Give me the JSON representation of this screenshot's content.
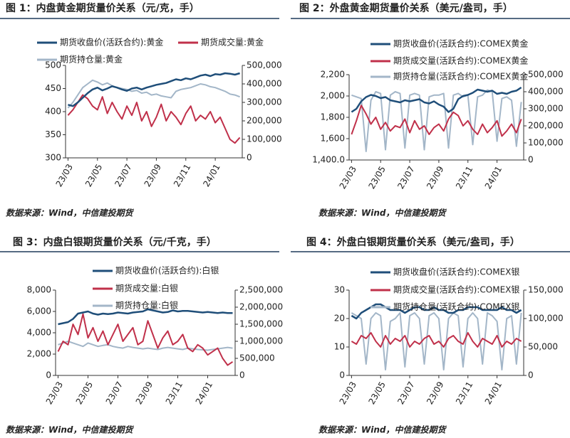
{
  "chart_data": [
    {
      "type": "line",
      "title": "图 1：内盘黄金期货量价关系（元/克，手）",
      "source": "数据来源：Wind，中信建投期货",
      "categories": [
        "23/03",
        null,
        null,
        null,
        null,
        null,
        "23/05",
        null,
        null,
        null,
        null,
        null,
        "23/07",
        null,
        null,
        null,
        null,
        null,
        "23/09",
        null,
        null,
        null,
        null,
        null,
        "23/11",
        null,
        null,
        null,
        null,
        null,
        "24/01",
        null,
        null,
        null,
        null,
        null
      ],
      "ylim": [
        300,
        500
      ],
      "yticks": [
        300,
        350,
        400,
        450,
        500
      ],
      "y2lim": [
        0,
        500000
      ],
      "y2ticks": [
        0,
        {
          "value": 100000,
          "label": "100,000"
        },
        {
          "value": 200000,
          "label": "200,000"
        },
        {
          "value": 300000,
          "label": "300,000"
        },
        {
          "value": 400000,
          "label": "400,000"
        },
        {
          "value": 500000,
          "label": "500,000"
        }
      ],
      "series": [
        {
          "name": "期货收盘价(活跃合约):黄金",
          "color": "#1f4e79",
          "values": [
            415,
            412,
            420,
            430,
            440,
            448,
            452,
            446,
            450,
            455,
            452,
            448,
            445,
            450,
            452,
            448,
            452,
            455,
            458,
            460,
            462,
            466,
            470,
            468,
            472,
            470,
            474,
            478,
            480,
            477,
            481,
            480,
            483,
            482,
            480,
            483
          ]
        },
        {
          "name": "期货成交量:黄金",
          "color": "#c0304a",
          "axis": "y2",
          "values": [
            230000,
            260000,
            300000,
            340000,
            320000,
            280000,
            260000,
            330000,
            240000,
            300000,
            250000,
            210000,
            280000,
            230000,
            300000,
            200000,
            250000,
            170000,
            220000,
            290000,
            200000,
            250000,
            220000,
            180000,
            240000,
            280000,
            200000,
            230000,
            210000,
            250000,
            190000,
            220000,
            160000,
            100000,
            80000,
            110000
          ]
        },
        {
          "name": "期货持仓量:黄金",
          "color": "#a3b6c8",
          "axis": "y2",
          "values": [
            270000,
            300000,
            340000,
            380000,
            400000,
            420000,
            410000,
            395000,
            405000,
            390000,
            380000,
            375000,
            370000,
            360000,
            365000,
            350000,
            355000,
            340000,
            345000,
            335000,
            330000,
            325000,
            360000,
            370000,
            375000,
            380000,
            390000,
            400000,
            395000,
            385000,
            380000,
            370000,
            360000,
            345000,
            340000,
            330000
          ]
        }
      ]
    },
    {
      "type": "line",
      "title": "图 2：外盘黄金期货量价关系（美元/盎司，手）",
      "source": "数据来源：Wind，中信建投期货",
      "categories": [
        "23/03",
        null,
        null,
        null,
        null,
        null,
        "23/05",
        null,
        null,
        null,
        null,
        null,
        "23/07",
        null,
        null,
        null,
        null,
        null,
        "23/09",
        null,
        null,
        null,
        null,
        null,
        "23/11",
        null,
        null,
        null,
        null,
        null,
        "24/01",
        null,
        null,
        null,
        null,
        null
      ],
      "ylim": [
        1400,
        2200
      ],
      "yticks": [
        {
          "value": 1400,
          "label": "1,400.0"
        },
        {
          "value": 1600,
          "label": "1,600"
        },
        {
          "value": 1800,
          "label": "1,800"
        },
        {
          "value": 2000,
          "label": "2,000"
        },
        {
          "value": 2200,
          "label": "2,200"
        }
      ],
      "y2lim": [
        0,
        500000
      ],
      "y2ticks": [
        0,
        {
          "value": 100000,
          "label": "100,000"
        },
        {
          "value": 200000,
          "label": "200,000"
        },
        {
          "value": 300000,
          "label": "300,000"
        },
        {
          "value": 400000,
          "label": "400,000"
        },
        {
          "value": 500000,
          "label": "500,000"
        }
      ],
      "series": [
        {
          "name": "期货收盘价(活跃合约):COMEX黄金",
          "color": "#1f4e79",
          "values": [
            1850,
            1880,
            1950,
            1990,
            2010,
            2000,
            1980,
            1990,
            1960,
            1950,
            1940,
            1960,
            1950,
            1960,
            1970,
            1940,
            1930,
            1950,
            1920,
            1900,
            1850,
            1880,
            1970,
            2000,
            2010,
            2030,
            2060,
            2050,
            2040,
            2050,
            2020,
            2030,
            2020,
            2040,
            2050,
            2080
          ]
        },
        {
          "name": "期货成交量(活跃合约):COMEX黄金",
          "color": "#c0304a",
          "axis": "y2",
          "values": [
            150000,
            230000,
            320000,
            270000,
            210000,
            250000,
            180000,
            220000,
            170000,
            200000,
            190000,
            240000,
            160000,
            230000,
            180000,
            200000,
            150000,
            190000,
            210000,
            170000,
            240000,
            280000,
            260000,
            200000,
            230000,
            180000,
            150000,
            210000,
            160000,
            190000,
            230000,
            140000,
            170000,
            210000,
            160000,
            240000
          ]
        },
        {
          "name": "期货持仓量(活跃合约):COMEX黄金",
          "color": "#a3b6c8",
          "axis": "y2",
          "values": [
            380000,
            370000,
            360000,
            50000,
            350000,
            400000,
            390000,
            60000,
            380000,
            400000,
            390000,
            70000,
            380000,
            390000,
            380000,
            60000,
            370000,
            380000,
            380000,
            390000,
            70000,
            380000,
            390000,
            370000,
            380000,
            90000,
            370000,
            380000,
            410000,
            400000,
            110000,
            360000,
            370000,
            350000,
            80000,
            340000
          ]
        }
      ]
    },
    {
      "type": "line",
      "title": "图 3：内盘白银期货量价关系（元/千克，手）",
      "source": "数据来源：Wind，中信建投期货",
      "categories": [
        "23/03",
        null,
        null,
        null,
        null,
        null,
        "23/05",
        null,
        null,
        null,
        null,
        null,
        "23/07",
        null,
        null,
        null,
        null,
        null,
        "23/09",
        null,
        null,
        null,
        null,
        null,
        "23/11",
        null,
        null,
        null,
        null,
        null,
        "24/01",
        null,
        null,
        null,
        null,
        null
      ],
      "ylim": [
        0,
        8000
      ],
      "yticks": [
        0,
        {
          "value": 2000,
          "label": "2,000"
        },
        {
          "value": 4000,
          "label": "4,000"
        },
        {
          "value": 6000,
          "label": "6,000"
        },
        {
          "value": 8000,
          "label": "8,000"
        }
      ],
      "y2lim": [
        0,
        2500000
      ],
      "y2ticks": [
        0,
        {
          "value": 500000,
          "label": "500,000"
        },
        {
          "value": 1000000,
          "label": "1,000,000"
        },
        {
          "value": 1500000,
          "label": "1,500,000"
        },
        {
          "value": 2000000,
          "label": "2,000,000"
        },
        {
          "value": 2500000,
          "label": "2,500,000"
        }
      ],
      "series": [
        {
          "name": "期货收盘价(活跃合约):白银",
          "color": "#1f4e79",
          "values": [
            4800,
            4900,
            5000,
            5300,
            5800,
            5900,
            6000,
            5800,
            5700,
            5800,
            5750,
            5800,
            5900,
            5850,
            5800,
            5900,
            5950,
            6000,
            6200,
            6100,
            6000,
            5900,
            5950,
            6100,
            6000,
            6050,
            6050,
            6000,
            5950,
            5900,
            5950,
            5900,
            5850,
            5900,
            5850,
            5850
          ]
        },
        {
          "name": "期货成交量:白银",
          "color": "#c0304a",
          "axis": "y2",
          "values": [
            700000,
            1000000,
            900000,
            1500000,
            1200000,
            1800000,
            1100000,
            1400000,
            1000000,
            1300000,
            900000,
            1200000,
            1500000,
            1000000,
            1200000,
            1400000,
            900000,
            1000000,
            1600000,
            1200000,
            800000,
            1100000,
            1300000,
            900000,
            1000000,
            1200000,
            800000,
            700000,
            900000,
            800000,
            600000,
            700000,
            800000,
            500000,
            300000,
            400000
          ]
        },
        {
          "name": "期货持仓量:白银",
          "color": "#a3b6c8",
          "axis": "y2",
          "values": [
            900000,
            950000,
            1000000,
            950000,
            900000,
            850000,
            950000,
            900000,
            850000,
            880000,
            900000,
            850000,
            820000,
            800000,
            850000,
            820000,
            800000,
            780000,
            800000,
            780000,
            760000,
            800000,
            820000,
            800000,
            780000,
            760000,
            800000,
            780000,
            760000,
            750000,
            740000,
            760000,
            780000,
            800000,
            820000,
            800000
          ]
        }
      ]
    },
    {
      "type": "line",
      "title": "图 4：外盘白银期货量价关系（美元/盎司，手）",
      "source": "数据来源：Wind，中信建投期货",
      "categories": [
        "23/03",
        null,
        null,
        null,
        null,
        null,
        "23/05",
        null,
        null,
        null,
        null,
        null,
        "23/07",
        null,
        null,
        null,
        null,
        null,
        "23/09",
        null,
        null,
        null,
        null,
        null,
        "23/11",
        null,
        null,
        null,
        null,
        null,
        "24/01",
        null,
        null,
        null,
        null,
        null
      ],
      "ylim": [
        0,
        30
      ],
      "yticks": [
        0,
        10,
        20,
        30
      ],
      "y2lim": [
        0,
        150000
      ],
      "y2ticks": [
        0,
        {
          "value": 50000,
          "label": "50,000"
        },
        {
          "value": 100000,
          "label": "100,000"
        },
        {
          "value": 150000,
          "label": "150,000"
        }
      ],
      "series": [
        {
          "name": "期货收盘价(活跃合约):COMEX银",
          "color": "#1f4e79",
          "values": [
            21,
            20,
            22,
            23,
            24,
            25,
            25,
            24,
            23,
            23,
            23,
            22,
            23,
            24,
            24,
            23,
            23,
            24,
            23,
            23,
            22,
            22,
            23,
            23,
            24,
            24,
            24,
            23,
            23,
            23,
            23,
            24,
            23,
            23,
            22,
            23
          ]
        },
        {
          "name": "期货成交量(活跃合约):COMEX银",
          "color": "#c0304a",
          "axis": "y2",
          "values": [
            60000,
            55000,
            70000,
            65000,
            75000,
            60000,
            50000,
            70000,
            55000,
            65000,
            60000,
            70000,
            50000,
            60000,
            55000,
            65000,
            70000,
            55000,
            60000,
            50000,
            65000,
            70000,
            60000,
            55000,
            75000,
            60000,
            50000,
            65000,
            60000,
            55000,
            70000,
            50000,
            60000,
            55000,
            65000,
            60000
          ]
        },
        {
          "name": "期货持仓量(活跃合约):COMEX银",
          "color": "#a3b6c8",
          "axis": "y2",
          "values": [
            110000,
            105000,
            100000,
            20000,
            100000,
            110000,
            105000,
            10000,
            95000,
            100000,
            110000,
            15000,
            105000,
            110000,
            100000,
            20000,
            105000,
            110000,
            100000,
            10000,
            100000,
            110000,
            105000,
            15000,
            100000,
            110000,
            100000,
            20000,
            110000,
            105000,
            95000,
            10000,
            100000,
            105000,
            20000,
            110000
          ]
        }
      ]
    }
  ]
}
